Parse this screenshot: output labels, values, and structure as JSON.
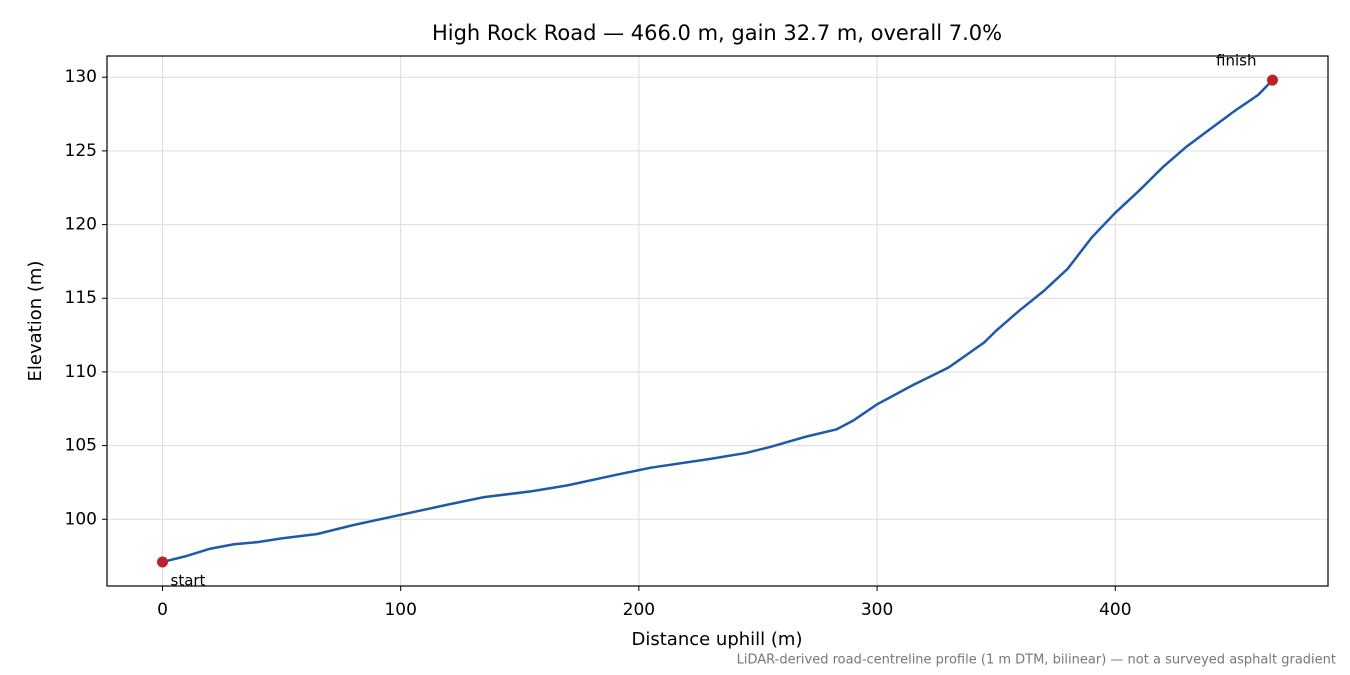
{
  "chart_data": {
    "type": "line",
    "title": "High Rock Road — 466.0 m, gain 32.7 m, overall 7.0%",
    "x_label": "Distance uphill (m)",
    "y_label": "Elevation (m)",
    "note": "LiDAR-derived road-centreline profile (1 m DTM, bilinear) — not a surveyed asphalt gradient",
    "x": [
      0,
      10,
      20,
      30,
      40,
      50,
      65,
      80,
      100,
      120,
      135,
      155,
      170,
      190,
      205,
      230,
      245,
      255,
      270,
      283,
      290,
      300,
      315,
      330,
      345,
      350,
      360,
      370,
      380,
      390,
      400,
      410,
      420,
      430,
      440,
      450,
      460,
      466
    ],
    "series": [
      {
        "name": "Elevation",
        "color": "#1f5aa6",
        "values": [
          97.1,
          97.5,
          98.0,
          98.3,
          98.45,
          98.7,
          99.0,
          99.6,
          100.3,
          101.0,
          101.5,
          101.9,
          102.3,
          103.0,
          103.5,
          104.1,
          104.5,
          104.9,
          105.6,
          106.1,
          106.7,
          107.8,
          109.1,
          110.3,
          112.0,
          112.8,
          114.2,
          115.5,
          117.0,
          119.1,
          120.8,
          122.3,
          123.9,
          125.3,
          126.5,
          127.7,
          128.8,
          129.8
        ]
      }
    ],
    "annotations": [
      {
        "text": "start",
        "x": 0,
        "y": 97.1
      },
      {
        "text": "finish",
        "x": 466,
        "y": 129.8
      }
    ],
    "marker_color": "#c0202a",
    "xlim": [
      -23.3,
      489.3
    ],
    "ylim": [
      95.47,
      131.44
    ],
    "xticks": [
      0,
      100,
      200,
      300,
      400
    ],
    "yticks": [
      100,
      105,
      110,
      115,
      120,
      125,
      130
    ],
    "grid": true
  }
}
